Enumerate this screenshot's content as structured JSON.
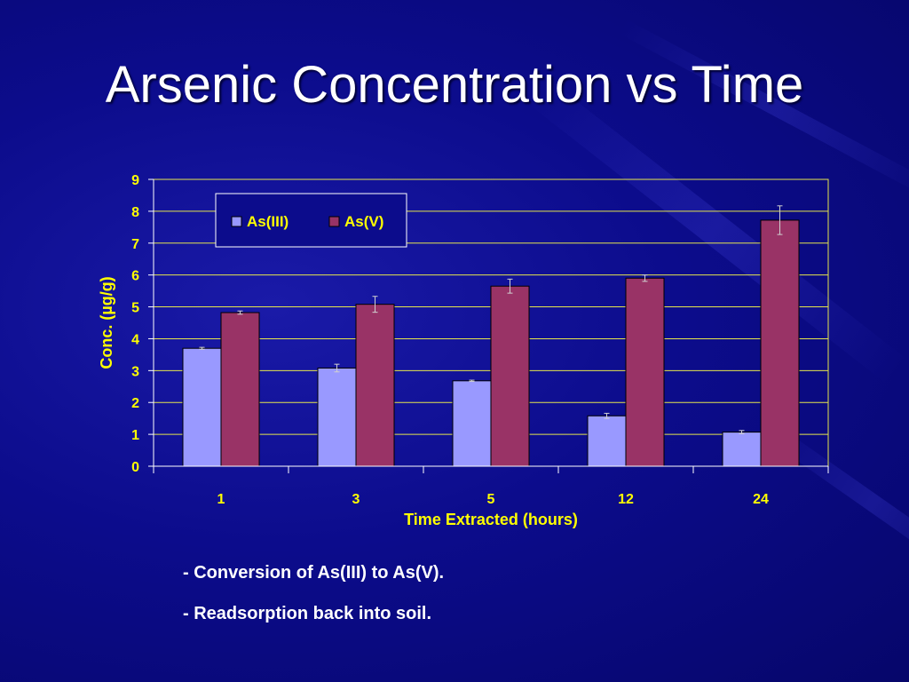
{
  "slide": {
    "title": "Arsenic Concentration vs Time",
    "bullets": [
      "- Conversion of As(III) to As(V).",
      "- Readsorption back into soil."
    ]
  },
  "chart_data": {
    "type": "bar",
    "xlabel": "Time Extracted (hours)",
    "ylabel": "Conc. (µg/g)",
    "categories": [
      "1",
      "3",
      "5",
      "12",
      "24"
    ],
    "ylim": [
      0,
      9
    ],
    "yticks": [
      0,
      1,
      2,
      3,
      4,
      5,
      6,
      7,
      8,
      9
    ],
    "grid": true,
    "legend": "top-left",
    "series": [
      {
        "name": "As(III)",
        "color": "#9999ff",
        "values": [
          3.7,
          3.08,
          2.68,
          1.58,
          1.07
        ],
        "errors": [
          0.03,
          0.12,
          0.02,
          0.08,
          0.05
        ]
      },
      {
        "name": "As(V)",
        "color": "#993366",
        "values": [
          4.82,
          5.08,
          5.65,
          5.9,
          7.72
        ],
        "errors": [
          0.05,
          0.25,
          0.22,
          0.1,
          0.45
        ]
      }
    ],
    "colors": {
      "background": "#0c0c8c",
      "grid": "#e6e64c",
      "axis_text": "#ffff00",
      "label_text": "#ffff00"
    }
  }
}
